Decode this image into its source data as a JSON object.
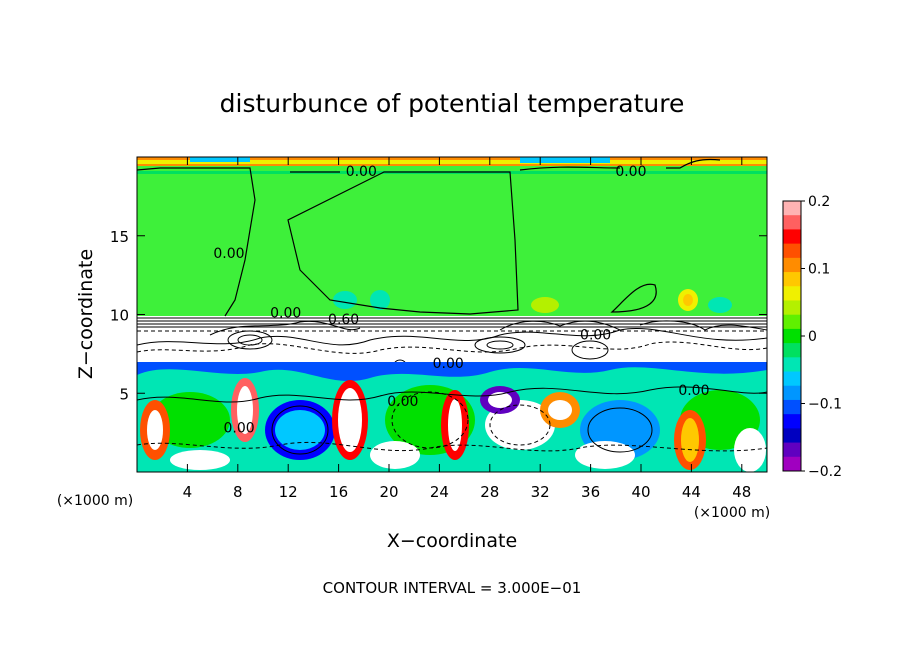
{
  "chart_data": {
    "type": "heatmap",
    "title": "disturbunce of potential temperature",
    "xlabel": "X−coordinate",
    "ylabel": "Z−coordinate",
    "x_unit": "(×1000 m)",
    "x_unit_right": "(×1000 m)",
    "xlim": [
      0,
      50
    ],
    "ylim": [
      0,
      20
    ],
    "x_ticks": [
      4,
      8,
      12,
      16,
      20,
      24,
      28,
      32,
      36,
      40,
      44,
      48
    ],
    "y_ticks": [
      5,
      10,
      15
    ],
    "colorbar": {
      "range": [
        -0.2,
        0.2
      ],
      "ticks": [
        {
          "value": 0.2,
          "label": "0.2"
        },
        {
          "value": 0.1,
          "label": "0.1"
        },
        {
          "value": 0,
          "label": "0"
        },
        {
          "value": -0.1,
          "label": "−0.1"
        },
        {
          "value": -0.2,
          "label": "−0.2"
        }
      ],
      "colors": [
        "#ffb3b3",
        "#ff6060",
        "#ff0000",
        "#ff5000",
        "#ff8c00",
        "#ffc800",
        "#f0f000",
        "#b4f000",
        "#60f000",
        "#00e000",
        "#00e060",
        "#00e6b4",
        "#00c8ff",
        "#0096ff",
        "#0050ff",
        "#0000ff",
        "#0000c0",
        "#6000c0",
        "#a000c0"
      ]
    },
    "contour_labels": [
      {
        "text": "0.00",
        "x": 17.8,
        "z": 18.8
      },
      {
        "text": "0.00",
        "x": 39.2,
        "z": 18.8
      },
      {
        "text": "0.00",
        "x": 7.3,
        "z": 13.6
      },
      {
        "text": "0.00",
        "x": 11.8,
        "z": 9.8
      },
      {
        "text": "0.60",
        "x": 16.4,
        "z": 9.4
      },
      {
        "text": "0.00",
        "x": 24.7,
        "z": 6.6
      },
      {
        "text": "0.00",
        "x": 21.1,
        "z": 4.2
      },
      {
        "text": "0.00",
        "x": 36.4,
        "z": 8.4
      },
      {
        "text": "0.00",
        "x": 44.2,
        "z": 4.9
      },
      {
        "text": "0.00",
        "x": 8.1,
        "z": 2.5
      }
    ],
    "footer": "CONTOUR INTERVAL = 3.000E−01"
  }
}
